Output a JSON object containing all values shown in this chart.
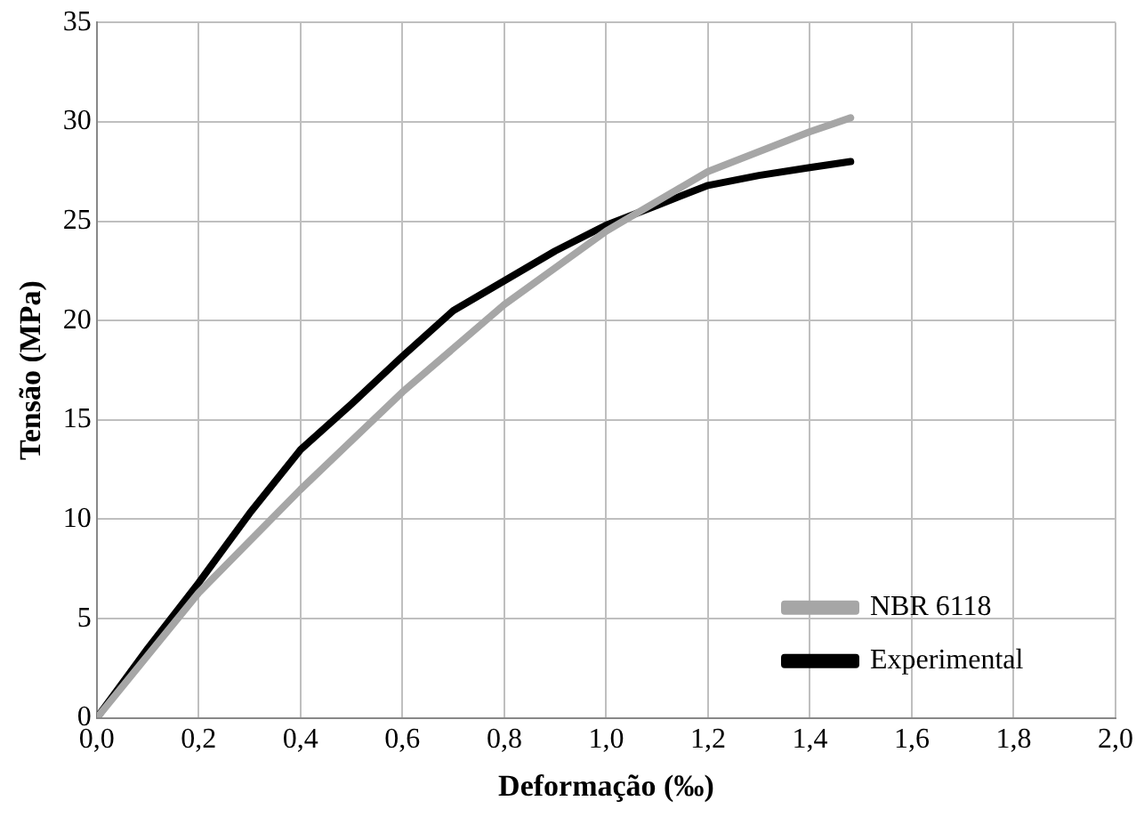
{
  "chart_data": {
    "type": "line",
    "xlabel": "Deformação (‰)",
    "ylabel": "Tensão (MPa)",
    "xlim": [
      0,
      2
    ],
    "xticks": [
      {
        "value": 0,
        "label": "0,0"
      },
      {
        "value": 0.2,
        "label": "0,2"
      },
      {
        "value": 0.4,
        "label": "0,4"
      },
      {
        "value": 0.6,
        "label": "0,6"
      },
      {
        "value": 0.8,
        "label": "0,8"
      },
      {
        "value": 1,
        "label": "1,0"
      },
      {
        "value": 1.2,
        "label": "1,2"
      },
      {
        "value": 1.4,
        "label": "1,4"
      },
      {
        "value": 1.6,
        "label": "1,6"
      },
      {
        "value": 1.8,
        "label": "1,8"
      },
      {
        "value": 2,
        "label": "2,0"
      }
    ],
    "ylim": [
      0,
      35
    ],
    "yticks": [
      0,
      5,
      10,
      15,
      20,
      25,
      30,
      35
    ],
    "grid": true,
    "legend": "bottom right",
    "marker": "none",
    "line_style": "solid",
    "series": [
      {
        "name": "NBR 6118",
        "color": "#a6a6a6",
        "x": [
          0,
          0.2,
          0.4,
          0.6,
          0.8,
          1.0,
          1.2,
          1.4,
          1.48
        ],
        "values": [
          0,
          6.3,
          11.5,
          16.4,
          20.8,
          24.5,
          27.5,
          29.5,
          30.2
        ]
      },
      {
        "name": "Experimental",
        "color": "#000000",
        "x": [
          0,
          0.1,
          0.2,
          0.3,
          0.4,
          0.5,
          0.6,
          0.7,
          0.8,
          0.9,
          1.0,
          1.1,
          1.2,
          1.3,
          1.4,
          1.48
        ],
        "values": [
          0,
          3.5,
          6.8,
          10.3,
          13.5,
          15.8,
          18.2,
          20.5,
          22,
          23.5,
          24.8,
          25.8,
          26.8,
          27.3,
          27.7,
          28
        ]
      }
    ]
  }
}
